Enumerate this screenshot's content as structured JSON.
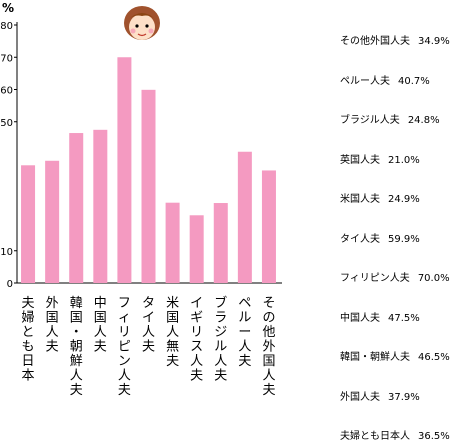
{
  "chart_data": {
    "type": "bar",
    "ylabel": "%",
    "ylim": [
      0,
      80
    ],
    "yticks": [
      0,
      10,
      50,
      60,
      70,
      80
    ],
    "grid": false,
    "bar_color": "#f49ac1",
    "categories": [
      "夫婦とも日本",
      "外国人夫",
      "韓国・朝鮮人夫",
      "中国人夫",
      "フィリピン人夫",
      "タイ人夫",
      "米国人無夫",
      "イギリス人夫",
      "ブラジル人夫",
      "ペルー人夫",
      "その他外国人夫"
    ],
    "values": [
      36.5,
      37.9,
      46.5,
      47.5,
      70.0,
      59.9,
      24.9,
      21.0,
      24.8,
      40.7,
      34.9
    ],
    "legend": [
      {
        "label": "その他外国人夫",
        "value": "34.9%"
      },
      {
        "label": "ペルー人夫",
        "value": "40.7%"
      },
      {
        "label": "ブラジル人夫",
        "value": "24.8%"
      },
      {
        "label": "英国人夫",
        "value": "21.0%"
      },
      {
        "label": "米国人夫",
        "value": "24.9%"
      },
      {
        "label": "タイ人夫",
        "value": "59.9%"
      },
      {
        "label": "フィリピン人夫",
        "value": "70.0%"
      },
      {
        "label": "中国人夫",
        "value": "47.5%"
      },
      {
        "label": "韓国・朝鮮人夫",
        "value": "46.5%"
      },
      {
        "label": "外国人夫",
        "value": "37.9%"
      },
      {
        "label": "夫婦とも日本人",
        "value": "36.5%"
      }
    ]
  },
  "icons": {
    "mascot": "girl-face-icon"
  }
}
